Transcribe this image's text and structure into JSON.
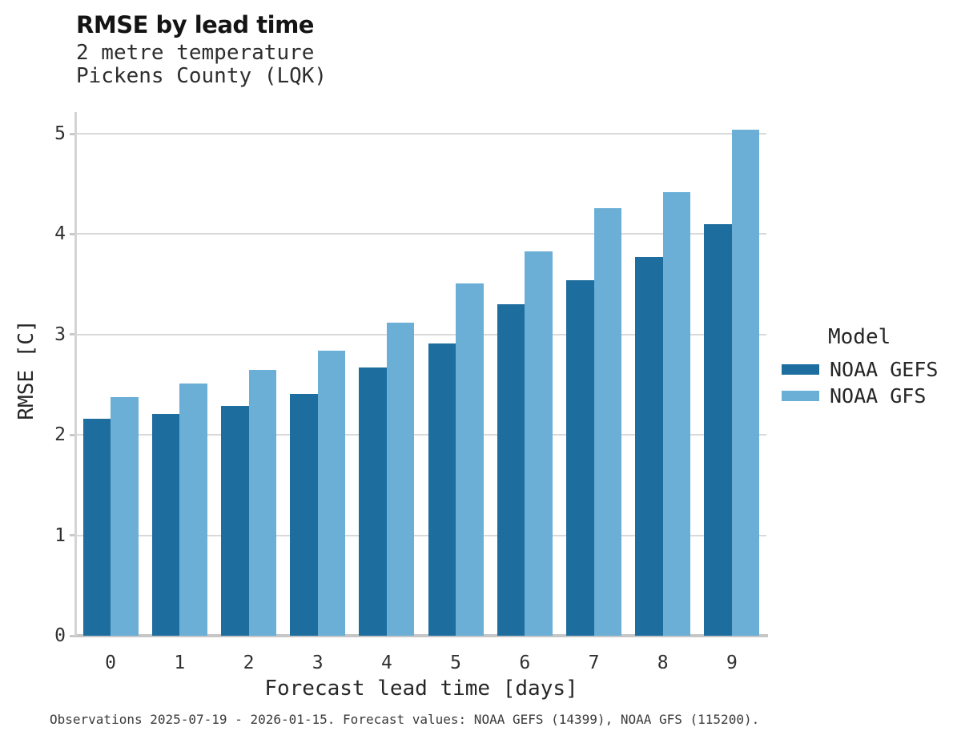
{
  "header": {
    "title": "RMSE by lead time",
    "subtitle_line1": "2 metre temperature",
    "subtitle_line2": "Pickens County (LQK)"
  },
  "chart_data": {
    "type": "bar",
    "title": "RMSE by lead time",
    "subtitle": [
      "2 metre temperature",
      "Pickens County (LQK)"
    ],
    "categories": [
      "0",
      "1",
      "2",
      "3",
      "4",
      "5",
      "6",
      "7",
      "8",
      "9"
    ],
    "series": [
      {
        "name": "NOAA GEFS",
        "color": "#1d6e9e",
        "values": [
          2.16,
          2.21,
          2.29,
          2.41,
          2.67,
          2.91,
          3.3,
          3.54,
          3.77,
          4.1
        ]
      },
      {
        "name": "NOAA GFS",
        "color": "#6bafd7",
        "values": [
          2.38,
          2.51,
          2.65,
          2.84,
          3.12,
          3.51,
          3.83,
          4.26,
          4.42,
          5.04
        ]
      }
    ],
    "xlabel": "Forecast lead time [days]",
    "ylabel": "RMSE [C]",
    "yticks": [
      0,
      1,
      2,
      3,
      4,
      5
    ],
    "ylim": [
      0,
      5.2
    ],
    "grid": true,
    "legend_title": "Model",
    "legend_position": "right"
  },
  "footnote": "Observations 2025-07-19 - 2026-01-15. Forecast values: NOAA GEFS (14399), NOAA GFS (115200)."
}
